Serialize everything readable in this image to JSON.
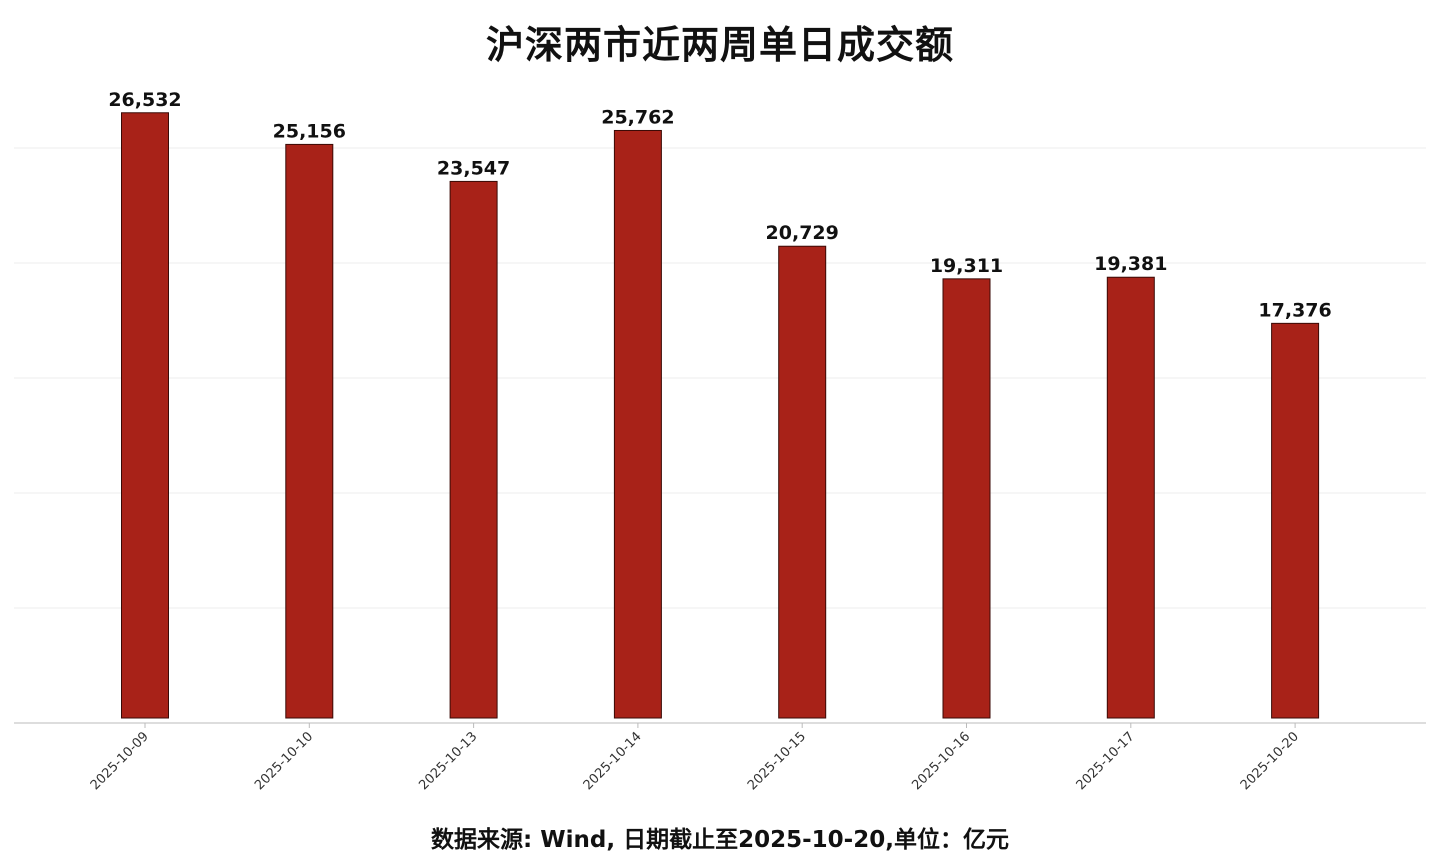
{
  "chart_data": {
    "type": "bar",
    "title": "沪深两市近两周单日成交额",
    "source_note": "数据来源: Wind, 日期截止至2025-10-20,单位：亿元",
    "categories": [
      "2025-10-09",
      "2025-10-10",
      "2025-10-13",
      "2025-10-14",
      "2025-10-15",
      "2025-10-16",
      "2025-10-17",
      "2025-10-20"
    ],
    "values": [
      26532,
      25156,
      23547,
      25762,
      20729,
      19311,
      19381,
      17376
    ],
    "value_labels": [
      "26,532",
      "25,156",
      "23,547",
      "25,762",
      "20,729",
      "19,311",
      "19,381",
      "17,376"
    ],
    "ylim": [
      0,
      30000
    ],
    "grid": true,
    "legend": "none",
    "colors": {
      "bar_fill": "#A82218",
      "bar_stroke": "#3a0a06",
      "grid": "#eeeeee",
      "axis": "#bbbbbb"
    }
  }
}
